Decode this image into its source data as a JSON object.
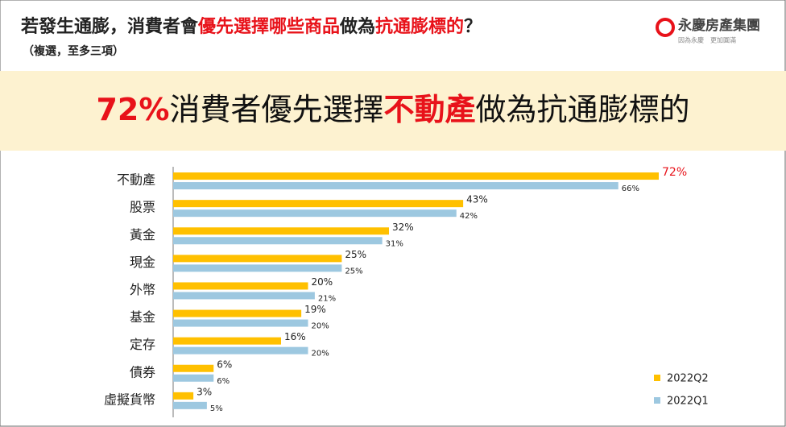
{
  "header": {
    "title_parts": [
      {
        "text": "若發生通膨，消費者會",
        "highlight": false
      },
      {
        "text": "優先選擇哪些商品",
        "highlight": true
      },
      {
        "text": "做為",
        "highlight": false
      },
      {
        "text": "抗通膨標的",
        "highlight": true
      },
      {
        "text": "？",
        "highlight": false
      }
    ],
    "subtitle": "（複選，至多三項）",
    "logo": "永慶房產集團",
    "logo_tagline": "因為永慶　更加圓滿",
    "highlight_color": "#e8121a"
  },
  "banner": {
    "parts": [
      {
        "text": "72%",
        "highlight": true
      },
      {
        "text": "消費者優先選擇",
        "highlight": false
      },
      {
        "text": "不動產",
        "highlight": true
      },
      {
        "text": "做為抗通膨標的",
        "highlight": false
      }
    ]
  },
  "chart_data": {
    "type": "bar",
    "orientation": "horizontal",
    "categories": [
      "不動產",
      "股票",
      "黃金",
      "現金",
      "外幣",
      "基金",
      "定存",
      "債券",
      "虛擬貨幣"
    ],
    "series": [
      {
        "name": "2022Q2",
        "color": "#ffc000",
        "values": [
          72,
          43,
          32,
          25,
          20,
          19,
          16,
          6,
          3
        ],
        "value_labels": [
          "72%",
          "43%",
          "32%",
          "25%",
          "20%",
          "19%",
          "16%",
          "6%",
          "3%"
        ]
      },
      {
        "name": "2022Q1",
        "color": "#9dc8e0",
        "values": [
          66,
          42,
          31,
          25,
          21,
          20,
          20,
          6,
          5
        ],
        "value_labels": [
          "66%",
          "42%",
          "31%",
          "25%",
          "21%",
          "20%",
          "20%",
          "6%",
          "5%"
        ]
      }
    ],
    "legend": "bottom-right"
  }
}
